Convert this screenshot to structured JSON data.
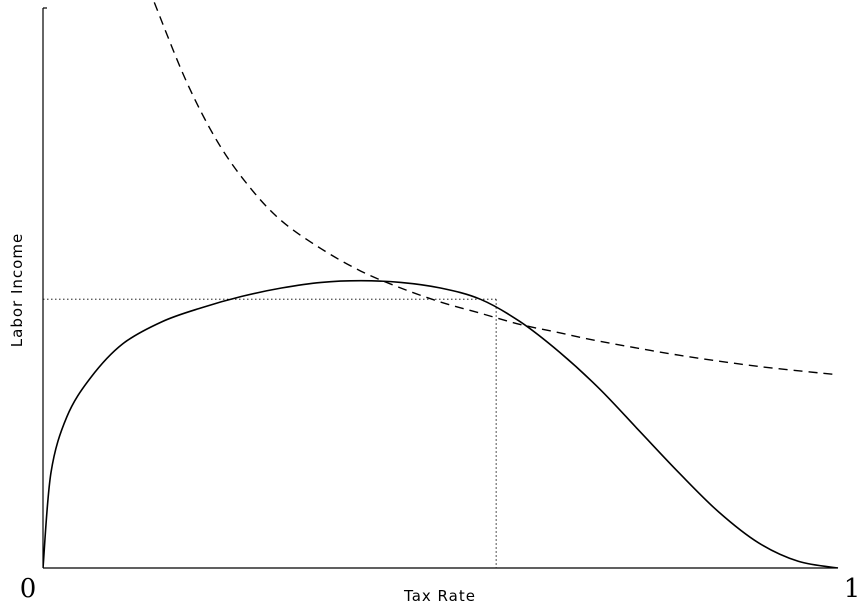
{
  "chart_data": {
    "type": "line",
    "xlabel": "Tax Rate",
    "ylabel": "Labor Income",
    "xlim": [
      0,
      1
    ],
    "ylim": [
      0,
      1
    ],
    "x_tick_labels": [
      "0",
      "1"
    ],
    "grid": false,
    "legend": "none",
    "series": [
      {
        "style": "solid",
        "x": [
          0,
          0.01,
          0.03,
          0.06,
          0.1,
          0.15,
          0.2,
          0.25,
          0.3,
          0.35,
          0.4,
          0.45,
          0.5,
          0.55,
          0.6,
          0.65,
          0.7,
          0.75,
          0.8,
          0.85,
          0.9,
          0.95,
          1
        ],
        "y": [
          0,
          0.17,
          0.27,
          0.34,
          0.4,
          0.44,
          0.465,
          0.485,
          0.5,
          0.51,
          0.513,
          0.51,
          0.5,
          0.48,
          0.44,
          0.385,
          0.32,
          0.245,
          0.17,
          0.1,
          0.045,
          0.012,
          0
        ]
      },
      {
        "style": "dashed",
        "x": [
          0.14,
          0.18,
          0.22,
          0.26,
          0.3,
          0.35,
          0.4,
          0.45,
          0.5,
          0.55,
          0.6,
          0.65,
          0.7,
          0.8,
          0.9,
          1
        ],
        "y": [
          1.01,
          0.87,
          0.76,
          0.68,
          0.62,
          0.57,
          0.53,
          0.5,
          0.475,
          0.455,
          0.435,
          0.42,
          0.405,
          0.38,
          0.36,
          0.345
        ]
      }
    ],
    "guides": {
      "x": 0.57,
      "y": 0.48
    }
  }
}
